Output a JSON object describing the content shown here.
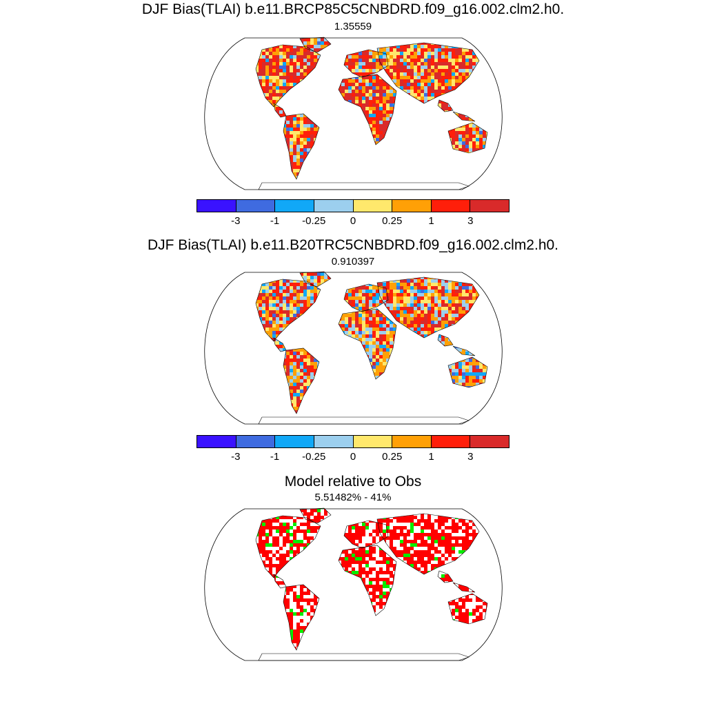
{
  "panels": [
    {
      "title": "DJF Bias(TLAI) b.e11.BRCP85C5CNBDRD.f09_g16.002.clm2.h0.",
      "subtitle": "1.35559",
      "variant": "bias_rcp"
    },
    {
      "title": "DJF Bias(TLAI) b.e11.B20TRC5CNBDRD.f09_g16.002.clm2.h0.",
      "subtitle": "0.910397",
      "variant": "bias_20tr"
    },
    {
      "title": "Model relative to Obs",
      "subtitle": "5.51482% - 41%",
      "variant": "relative"
    }
  ],
  "colorbar": {
    "colors": [
      "#3a12ff",
      "#3f6be0",
      "#11a8f7",
      "#9ccfee",
      "#ffe86c",
      "#ffa006",
      "#ff1f0a",
      "#d92a2a"
    ],
    "labels": [
      "-3",
      "-1",
      "-0.25",
      "0",
      "0.25",
      "1",
      "3"
    ]
  },
  "relative_colors": {
    "red": "#ff0000",
    "green": "#00ee00"
  }
}
